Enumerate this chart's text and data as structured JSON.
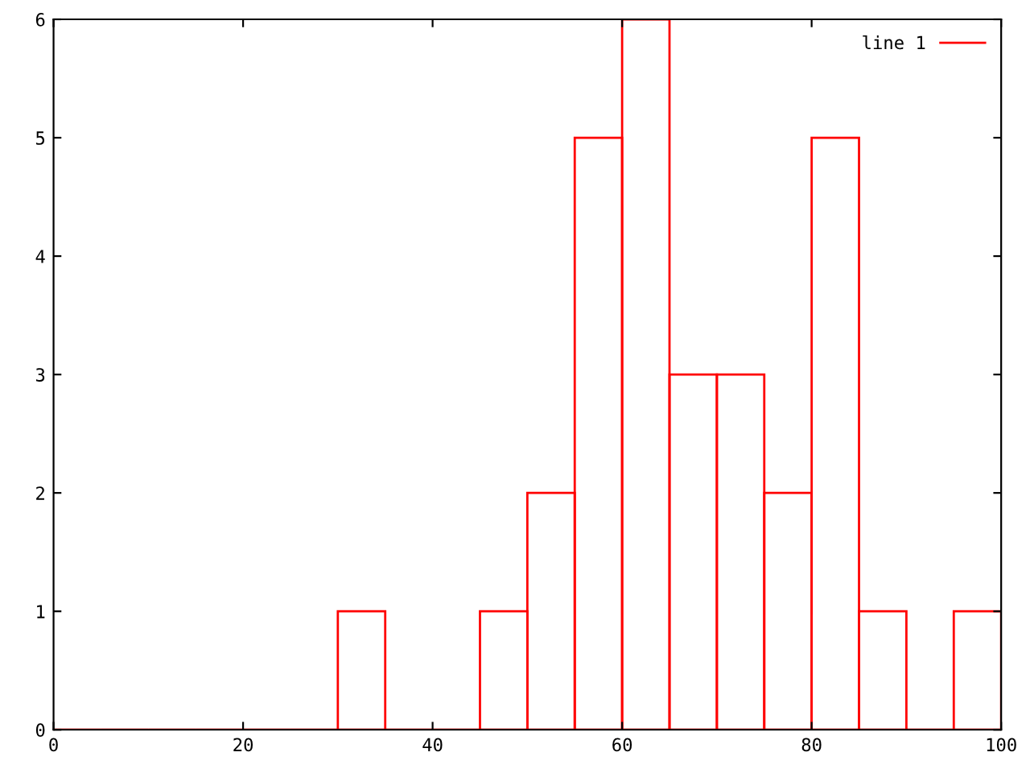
{
  "chart_data": {
    "type": "histogram",
    "bins": [
      0,
      5,
      10,
      15,
      20,
      25,
      30,
      35,
      40,
      45,
      50,
      55,
      60,
      65,
      70,
      75,
      80,
      85,
      90,
      95,
      100
    ],
    "series": [
      {
        "name": "line 1",
        "color": "#ff0000",
        "values": [
          0,
          0,
          0,
          0,
          0,
          0,
          1,
          0,
          0,
          1,
          2,
          5,
          6,
          3,
          3,
          2,
          5,
          1,
          0,
          1
        ]
      }
    ],
    "xlim": [
      0,
      100
    ],
    "xticks": [
      0,
      20,
      40,
      60,
      80,
      100
    ],
    "ylim": [
      0,
      6
    ],
    "yticks": [
      0,
      1,
      2,
      3,
      4,
      5,
      6
    ],
    "grid": false,
    "legend": "top right"
  }
}
